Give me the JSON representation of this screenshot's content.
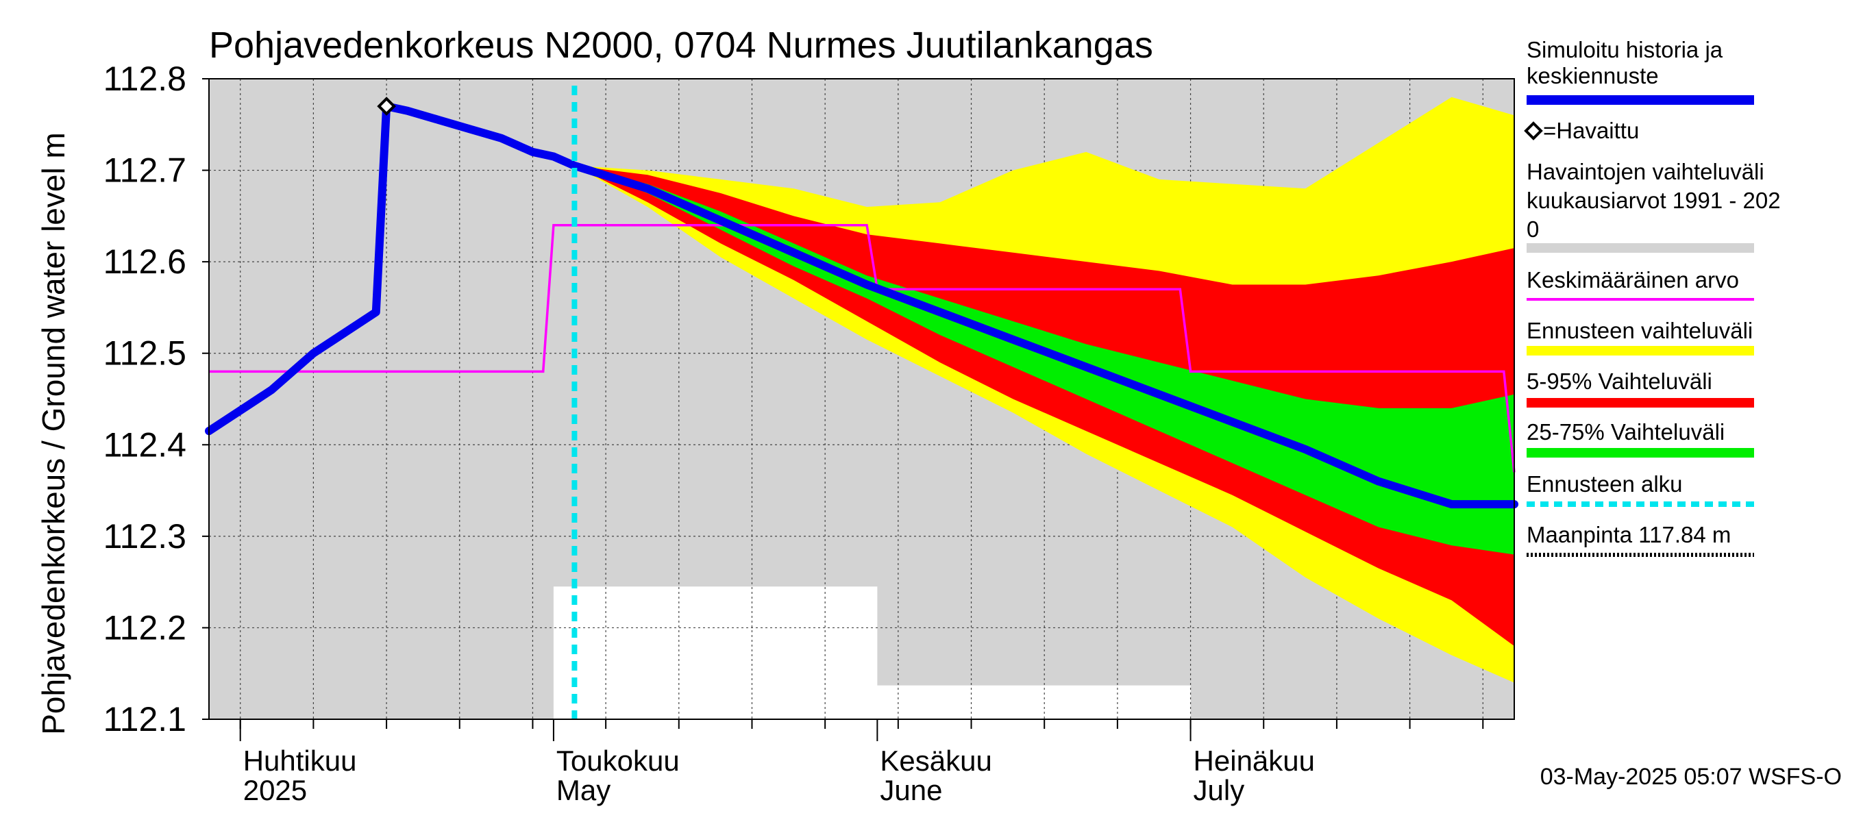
{
  "chart_data": {
    "type": "area",
    "title": "Pohjavedenkorkeus N2000, 0704 Nurmes Juutilankangas",
    "ylabel": "Pohjavedenkorkeus / Ground water level   m",
    "ylim": [
      112.1,
      112.8
    ],
    "yticks": [
      "112.1",
      "112.2",
      "112.3",
      "112.4",
      "112.5",
      "112.6",
      "112.7",
      "112.8"
    ],
    "xlim": [
      "2025-03-29",
      "2025-08-01"
    ],
    "month_labels": [
      {
        "date": "2025-04-01",
        "fi": "Huhtikuu",
        "en": "2025"
      },
      {
        "date": "2025-05-01",
        "fi": "Toukokuu",
        "en": "May"
      },
      {
        "date": "2025-06-01",
        "fi": "Kesäkuu",
        "en": "June"
      },
      {
        "date": "2025-07-01",
        "fi": "Heinäkuu",
        "en": "July"
      }
    ],
    "grid": true,
    "legend_position": "right",
    "timestamp": "03-May-2025 05:07 WSFS-O",
    "legend": [
      {
        "label": "Simuloitu historia ja keskiennuste",
        "color": "#0000ee",
        "style": "line"
      },
      {
        "label": "=Havaittu",
        "color": "#000000",
        "style": "diamond"
      },
      {
        "label": "Havaintojen vaihteluväli kuukausiarvot 1991 - 2020",
        "color": "#d3d3d3",
        "style": "band"
      },
      {
        "label": "Keskimääräinen arvo",
        "color": "#ff00ff",
        "style": "line"
      },
      {
        "label": "Ennusteen vaihteluväli",
        "color": "#ffff00",
        "style": "band"
      },
      {
        "label": "5-95% Vaihteluväli",
        "color": "#ff0000",
        "style": "band"
      },
      {
        "label": "25-75% Vaihteluväli",
        "color": "#00ee00",
        "style": "band"
      },
      {
        "label": "Ennusteen alku",
        "color": "#00e5ee",
        "style": "dashed"
      },
      {
        "label": "Maanpinta 117.84 m",
        "color": "#000000",
        "style": "dotted"
      }
    ],
    "forecast_start": "2025-05-03",
    "observed": [
      {
        "date": "2025-04-15",
        "value": 112.77
      }
    ],
    "historical_range_monthly": [
      {
        "month": "2025-03",
        "min": 112.1,
        "max": 112.8
      },
      {
        "month": "2025-04",
        "min": 112.1,
        "max": 112.8
      },
      {
        "month": "2025-05",
        "min": 112.245,
        "max": 112.8
      },
      {
        "month": "2025-06",
        "min": 112.137,
        "max": 112.8
      },
      {
        "month": "2025-07",
        "min": 112.1,
        "max": 112.8
      }
    ],
    "monthly_mean": [
      {
        "start": "2025-03-29",
        "end": "2025-04-30",
        "value": 112.48
      },
      {
        "start": "2025-05-01",
        "end": "2025-05-31",
        "value": 112.64
      },
      {
        "start": "2025-06-01",
        "end": "2025-06-30",
        "value": 112.57
      },
      {
        "start": "2025-07-01",
        "end": "2025-07-31",
        "value": 112.48
      },
      {
        "start": "2025-08-01",
        "end": "2025-08-01",
        "value": 112.37
      }
    ],
    "simulated_history": {
      "x": [
        "2025-03-29",
        "2025-03-31",
        "2025-04-02",
        "2025-04-04",
        "2025-04-06",
        "2025-04-08",
        "2025-04-10",
        "2025-04-12",
        "2025-04-14",
        "2025-04-15",
        "2025-04-17",
        "2025-04-20",
        "2025-04-23",
        "2025-04-26",
        "2025-04-29",
        "2025-05-01",
        "2025-05-03"
      ],
      "y": [
        112.415,
        112.43,
        112.445,
        112.46,
        112.48,
        112.5,
        112.515,
        112.53,
        112.545,
        112.77,
        112.765,
        112.755,
        112.745,
        112.735,
        112.72,
        112.715,
        112.705
      ]
    },
    "forecast_dates": [
      "2025-05-03",
      "2025-05-10",
      "2025-05-17",
      "2025-05-24",
      "2025-05-31",
      "2025-06-07",
      "2025-06-14",
      "2025-06-21",
      "2025-06-28",
      "2025-07-05",
      "2025-07-12",
      "2025-07-19",
      "2025-07-26",
      "2025-08-01"
    ],
    "forecast_median": [
      112.705,
      112.68,
      112.645,
      112.61,
      112.575,
      112.545,
      112.515,
      112.485,
      112.455,
      112.425,
      112.395,
      112.36,
      112.335,
      112.335
    ],
    "forecast_25_75": [
      [
        112.705,
        112.705
      ],
      [
        112.675,
        112.685
      ],
      [
        112.635,
        112.655
      ],
      [
        112.595,
        112.62
      ],
      [
        112.56,
        112.585
      ],
      [
        112.52,
        112.56
      ],
      [
        112.485,
        112.535
      ],
      [
        112.45,
        112.51
      ],
      [
        112.415,
        112.49
      ],
      [
        112.38,
        112.47
      ],
      [
        112.345,
        112.45
      ],
      [
        112.31,
        112.44
      ],
      [
        112.29,
        112.44
      ],
      [
        112.28,
        112.455
      ]
    ],
    "forecast_5_95": [
      [
        112.705,
        112.705
      ],
      [
        112.665,
        112.695
      ],
      [
        112.62,
        112.675
      ],
      [
        112.58,
        112.65
      ],
      [
        112.535,
        112.63
      ],
      [
        112.49,
        112.62
      ],
      [
        112.45,
        112.61
      ],
      [
        112.415,
        112.6
      ],
      [
        112.38,
        112.59
      ],
      [
        112.345,
        112.575
      ],
      [
        112.305,
        112.575
      ],
      [
        112.265,
        112.585
      ],
      [
        112.23,
        112.6
      ],
      [
        112.18,
        112.615
      ]
    ],
    "forecast_range": [
      [
        112.705,
        112.705
      ],
      [
        112.66,
        112.7
      ],
      [
        112.605,
        112.69
      ],
      [
        112.56,
        112.68
      ],
      [
        112.515,
        112.66
      ],
      [
        112.475,
        112.665
      ],
      [
        112.435,
        112.7
      ],
      [
        112.39,
        112.72
      ],
      [
        112.35,
        112.69
      ],
      [
        112.31,
        112.685
      ],
      [
        112.255,
        112.68
      ],
      [
        112.21,
        112.73
      ],
      [
        112.17,
        112.78
      ],
      [
        112.14,
        112.76
      ]
    ]
  }
}
